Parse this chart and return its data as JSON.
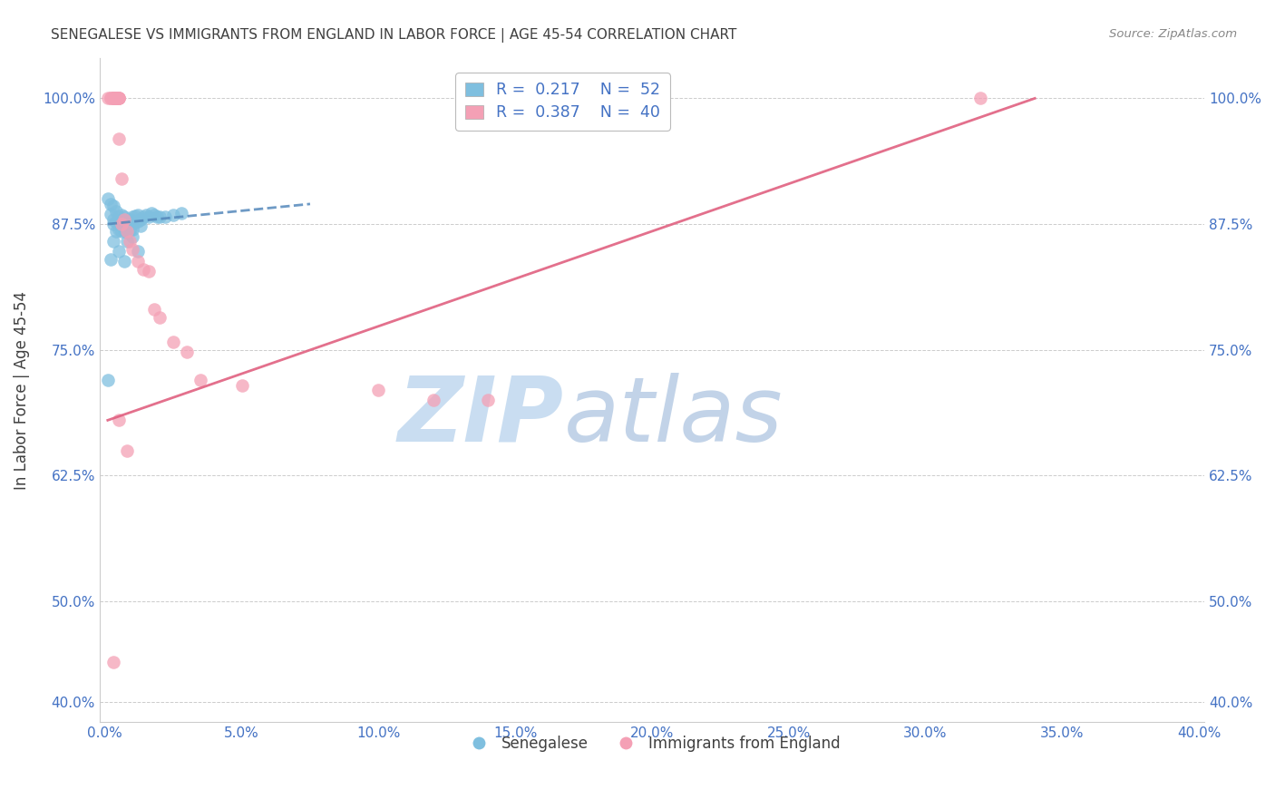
{
  "title": "SENEGALESE VS IMMIGRANTS FROM ENGLAND IN LABOR FORCE | AGE 45-54 CORRELATION CHART",
  "source": "Source: ZipAtlas.com",
  "ylabel_label": "In Labor Force | Age 45-54",
  "xlim": [
    -0.002,
    0.402
  ],
  "ylim": [
    0.38,
    1.04
  ],
  "ytick_positions": [
    0.4,
    0.5,
    0.625,
    0.75,
    0.875,
    1.0
  ],
  "ytick_labels": [
    "40.0%",
    "50.0%",
    "62.5%",
    "75.0%",
    "87.5%",
    "100.0%"
  ],
  "xtick_positions": [
    0.0,
    0.05,
    0.1,
    0.15,
    0.2,
    0.25,
    0.3,
    0.35,
    0.4
  ],
  "xtick_labels": [
    "0.0%",
    "5.0%",
    "10.0%",
    "15.0%",
    "20.0%",
    "25.0%",
    "30.0%",
    "35.0%",
    "40.0%"
  ],
  "blue_color": "#7fbfdf",
  "pink_color": "#f4a0b5",
  "blue_line_color": "#5588bb",
  "pink_line_color": "#e06080",
  "grid_color": "#cccccc",
  "title_color": "#404040",
  "tick_label_color": "#4472c4",
  "right_tick_color": "#4472c4",
  "watermark_zip_color": "#c8dcf0",
  "watermark_atlas_color": "#b0c8e8",
  "legend_r_color": "#4472c4",
  "legend_n_color": "#4472c4",
  "blue_scatter_x": [
    0.001,
    0.002,
    0.002,
    0.003,
    0.003,
    0.003,
    0.004,
    0.004,
    0.005,
    0.005,
    0.005,
    0.006,
    0.006,
    0.006,
    0.006,
    0.007,
    0.007,
    0.007,
    0.008,
    0.008,
    0.008,
    0.009,
    0.009,
    0.009,
    0.01,
    0.01,
    0.01,
    0.011,
    0.011,
    0.012,
    0.012,
    0.013,
    0.013,
    0.014,
    0.015,
    0.016,
    0.017,
    0.018,
    0.019,
    0.02,
    0.022,
    0.025,
    0.028,
    0.003,
    0.004,
    0.005,
    0.007,
    0.008,
    0.01,
    0.012,
    0.002,
    0.001
  ],
  "blue_scatter_y": [
    0.9,
    0.895,
    0.885,
    0.893,
    0.88,
    0.875,
    0.888,
    0.877,
    0.882,
    0.876,
    0.87,
    0.884,
    0.879,
    0.874,
    0.868,
    0.882,
    0.876,
    0.869,
    0.879,
    0.874,
    0.867,
    0.88,
    0.875,
    0.869,
    0.882,
    0.876,
    0.87,
    0.883,
    0.877,
    0.884,
    0.878,
    0.88,
    0.873,
    0.882,
    0.884,
    0.882,
    0.886,
    0.884,
    0.882,
    0.882,
    0.882,
    0.884,
    0.886,
    0.858,
    0.868,
    0.848,
    0.838,
    0.858,
    0.862,
    0.848,
    0.84,
    0.72
  ],
  "pink_scatter_x": [
    0.001,
    0.002,
    0.002,
    0.003,
    0.003,
    0.003,
    0.003,
    0.004,
    0.004,
    0.004,
    0.004,
    0.004,
    0.005,
    0.005,
    0.005,
    0.005,
    0.005,
    0.006,
    0.006,
    0.007,
    0.008,
    0.009,
    0.01,
    0.012,
    0.014,
    0.016,
    0.018,
    0.02,
    0.025,
    0.03,
    0.035,
    0.05,
    0.1,
    0.14,
    0.32,
    0.003,
    0.12,
    0.005,
    0.008,
    0.16
  ],
  "pink_scatter_y": [
    1.0,
    1.0,
    1.0,
    1.0,
    1.0,
    1.0,
    1.0,
    1.0,
    1.0,
    1.0,
    1.0,
    1.0,
    1.0,
    1.0,
    1.0,
    1.0,
    0.96,
    0.92,
    0.875,
    0.88,
    0.868,
    0.858,
    0.85,
    0.838,
    0.83,
    0.828,
    0.79,
    0.782,
    0.758,
    0.748,
    0.72,
    0.715,
    0.71,
    0.7,
    1.0,
    0.44,
    0.7,
    0.68,
    0.65,
    1.0
  ],
  "blue_trendline_x0": 0.001,
  "blue_trendline_x1": 0.075,
  "blue_trendline_y0": 0.875,
  "blue_trendline_y1": 0.895,
  "pink_trendline_x0": 0.001,
  "pink_trendline_x1": 0.34,
  "pink_trendline_y0": 0.68,
  "pink_trendline_y1": 1.0
}
